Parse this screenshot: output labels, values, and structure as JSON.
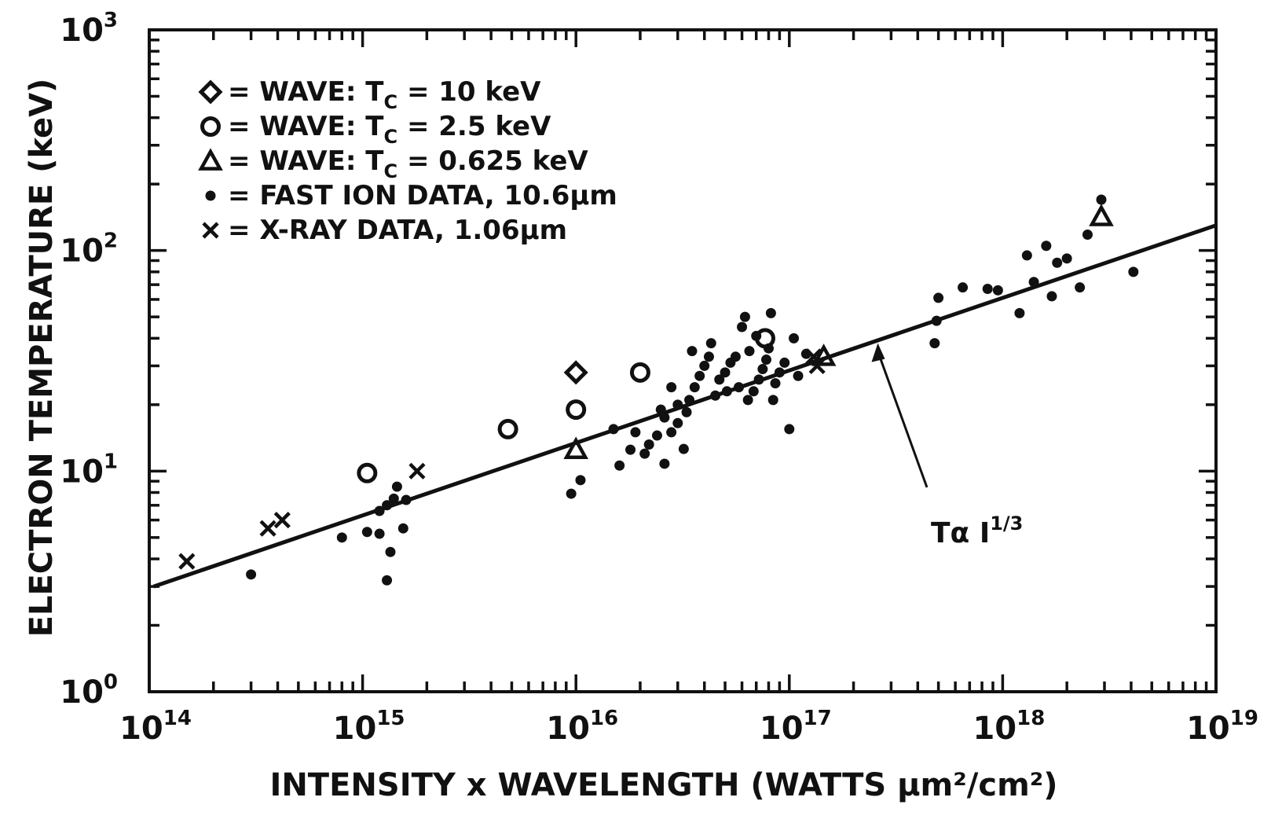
{
  "chart_data": {
    "type": "scatter",
    "title": "",
    "xlabel": "INTENSITY x WAVELENGTH (WATTS μm²/cm²)",
    "ylabel": "ELECTRON TEMPERATURE  (keV)",
    "xscale": "log",
    "yscale": "log",
    "xlim": [
      100000000000000.0,
      1e+19
    ],
    "ylim": [
      1,
      1000
    ],
    "grid": false,
    "legend_position": "top-left",
    "x_ticks": [
      {
        "value": 100000000000000.0,
        "base": "10",
        "exp": "14"
      },
      {
        "value": 1000000000000000.0,
        "base": "10",
        "exp": "15"
      },
      {
        "value": 1e+16,
        "base": "10",
        "exp": "16"
      },
      {
        "value": 1e+17,
        "base": "10",
        "exp": "17"
      },
      {
        "value": 1e+18,
        "base": "10",
        "exp": "18"
      },
      {
        "value": 1e+19,
        "base": "10",
        "exp": "19"
      }
    ],
    "y_ticks": [
      {
        "value": 1,
        "base": "10",
        "exp": "0"
      },
      {
        "value": 10,
        "base": "10",
        "exp": "1"
      },
      {
        "value": 100,
        "base": "10",
        "exp": "2"
      },
      {
        "value": 1000,
        "base": "10",
        "exp": "3"
      }
    ],
    "legend": [
      {
        "marker": "diamond",
        "text": "= WAVE: T",
        "sub": "C",
        "tail": " = 10  keV"
      },
      {
        "marker": "circle",
        "text": "= WAVE: T",
        "sub": "C",
        "tail": " = 2.5 keV"
      },
      {
        "marker": "triangle",
        "text": "= WAVE: T",
        "sub": "C",
        "tail": " = 0.625 keV"
      },
      {
        "marker": "dot",
        "text": "= FAST ION DATA, 10.6μm",
        "sub": "",
        "tail": ""
      },
      {
        "marker": "x",
        "text": "= X-RAY DATA, 1.06μm",
        "sub": "",
        "tail": ""
      }
    ],
    "fit_line": {
      "label": "Tα I",
      "label_exp": "1/3",
      "x": [
        105000000000000.0,
        1e+19
      ],
      "y": [
        3.0,
        130
      ]
    },
    "series": [
      {
        "name": "WAVE: Tc = 10 keV",
        "marker": "diamond",
        "points": [
          [
            1e+16,
            28
          ]
        ]
      },
      {
        "name": "WAVE: Tc = 2.5 keV",
        "marker": "circle",
        "points": [
          [
            1050000000000000.0,
            9.8
          ],
          [
            4800000000000000.0,
            15.5
          ],
          [
            1e+16,
            19
          ],
          [
            2e+16,
            28
          ],
          [
            7.7e+16,
            40
          ]
        ]
      },
      {
        "name": "WAVE: Tc = 0.625 keV",
        "marker": "triangle",
        "points": [
          [
            1e+16,
            12.5
          ],
          [
            1.45e+17,
            33
          ],
          [
            2.9e+18,
            142
          ]
        ]
      },
      {
        "name": "FAST ION DATA, 10.6μm",
        "marker": "dot",
        "points": [
          [
            300000000000000.0,
            3.4
          ],
          [
            800000000000000.0,
            5.0
          ],
          [
            1050000000000000.0,
            5.3
          ],
          [
            1200000000000000.0,
            5.2
          ],
          [
            1300000000000000.0,
            3.2
          ],
          [
            1350000000000000.0,
            4.3
          ],
          [
            1550000000000000.0,
            5.5
          ],
          [
            1450000000000000.0,
            8.5
          ],
          [
            1300000000000000.0,
            7.0
          ],
          [
            1400000000000000.0,
            7.5
          ],
          [
            1600000000000000.0,
            7.4
          ],
          [
            1200000000000000.0,
            6.6
          ],
          [
            9500000000000000.0,
            7.9
          ],
          [
            1.05e+16,
            9.1
          ],
          [
            1.5e+16,
            15.5
          ],
          [
            1.6e+16,
            10.6
          ],
          [
            1.8e+16,
            12.5
          ],
          [
            1.9e+16,
            15.0
          ],
          [
            2.1e+16,
            12.0
          ],
          [
            2.2e+16,
            13.2
          ],
          [
            2.4e+16,
            14.5
          ],
          [
            2.6e+16,
            10.8
          ],
          [
            2.6e+16,
            17.5
          ],
          [
            2.8e+16,
            15.0
          ],
          [
            3e+16,
            16.5
          ],
          [
            3.2e+16,
            12.6
          ],
          [
            3.3e+16,
            18.5
          ],
          [
            3.4e+16,
            21.0
          ],
          [
            3.6e+16,
            24.0
          ],
          [
            3.8e+16,
            27.0
          ],
          [
            4e+16,
            30.0
          ],
          [
            4.2e+16,
            33.0
          ],
          [
            4.5e+16,
            22.0
          ],
          [
            4.7e+16,
            26.0
          ],
          [
            5e+16,
            28.0
          ],
          [
            5.3e+16,
            31.0
          ],
          [
            5.6e+16,
            33.0
          ],
          [
            5.8e+16,
            24.0
          ],
          [
            6e+16,
            45.0
          ],
          [
            6.2e+16,
            50.0
          ],
          [
            6.5e+16,
            35.0
          ],
          [
            6.8e+16,
            23.0
          ],
          [
            7.2e+16,
            26.0
          ],
          [
            7.5e+16,
            29.0
          ],
          [
            7.8e+16,
            32.0
          ],
          [
            8e+16,
            36.0
          ],
          [
            8.2e+16,
            52.0
          ],
          [
            8.6e+16,
            25.0
          ],
          [
            9e+16,
            28.0
          ],
          [
            9.5e+16,
            31.0
          ],
          [
            1e+17,
            15.5
          ],
          [
            1.05e+17,
            40.0
          ],
          [
            1.1e+17,
            27.0
          ],
          [
            1.2e+17,
            34.0
          ],
          [
            2.8e+16,
            24.0
          ],
          [
            3e+16,
            20.0
          ],
          [
            2.5e+16,
            19.0
          ],
          [
            3.5e+16,
            35.0
          ],
          [
            4.3e+16,
            38.0
          ],
          [
            5.1e+16,
            23.0
          ],
          [
            6.4e+16,
            21.0
          ],
          [
            7e+16,
            41.0
          ],
          [
            8.4e+16,
            21.0
          ],
          [
            4.8e+17,
            38.0
          ],
          [
            4.9e+17,
            48.0
          ],
          [
            5e+17,
            61.0
          ],
          [
            6.5e+17,
            68.0
          ],
          [
            8.5e+17,
            67.0
          ],
          [
            9.5e+17,
            66.0
          ],
          [
            1.2e+18,
            52.0
          ],
          [
            1.4e+18,
            72.0
          ],
          [
            1.7e+18,
            62.0
          ],
          [
            1.3e+18,
            95.0
          ],
          [
            1.6e+18,
            105.0
          ],
          [
            1.8e+18,
            88.0
          ],
          [
            2e+18,
            92.0
          ],
          [
            2.3e+18,
            68.0
          ],
          [
            2.5e+18,
            118.0
          ],
          [
            2.9e+18,
            170.0
          ],
          [
            4.1e+18,
            80.0
          ]
        ]
      },
      {
        "name": "X-RAY DATA, 1.06μm",
        "marker": "x",
        "points": [
          [
            150000000000000.0,
            3.9
          ],
          [
            360000000000000.0,
            5.5
          ],
          [
            420000000000000.0,
            6.0
          ],
          [
            1800000000000000.0,
            10.0
          ],
          [
            1.35e+17,
            30.0
          ],
          [
            1.3e+17,
            33.0
          ]
        ]
      }
    ]
  }
}
